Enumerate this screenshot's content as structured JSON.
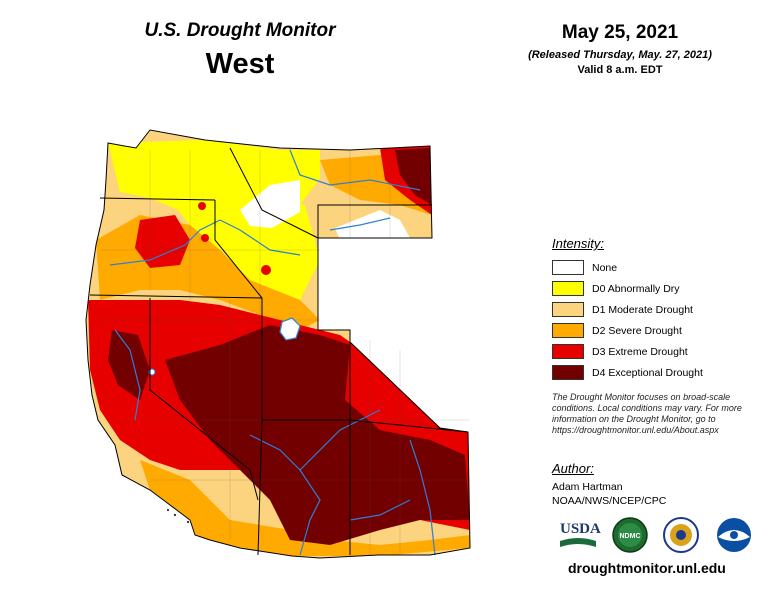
{
  "header": {
    "title": "U.S. Drought Monitor",
    "region": "West",
    "date": "May 25, 2021",
    "released": "(Released Thursday, May. 27, 2021)",
    "valid": "Valid 8 a.m. EDT"
  },
  "legend": {
    "title": "Intensity:",
    "items": [
      {
        "label": "None",
        "color": "#ffffff"
      },
      {
        "label": "D0 Abnormally Dry",
        "color": "#ffff00"
      },
      {
        "label": "D1 Moderate Drought",
        "color": "#fcd37f"
      },
      {
        "label": "D2 Severe Drought",
        "color": "#ffaa00"
      },
      {
        "label": "D3 Extreme Drought",
        "color": "#e60000"
      },
      {
        "label": "D4 Exceptional Drought",
        "color": "#730000"
      }
    ]
  },
  "note": "The Drought Monitor focuses on broad-scale conditions. Local conditions may vary. For more information on the Drought Monitor, go to https://droughtmonitor.unl.edu/About.aspx",
  "author": {
    "title": "Author:",
    "name": "Adam Hartman",
    "org": "NOAA/NWS/NCEP/CPC"
  },
  "logos": {
    "usda": "USDA",
    "ndmc": "NDMC"
  },
  "url": "droughtmonitor.unl.edu",
  "colors": {
    "none": "#ffffff",
    "d0": "#ffff00",
    "d1": "#fcd37f",
    "d2": "#ffaa00",
    "d3": "#e60000",
    "d4": "#730000",
    "water": "#2d7fd8"
  }
}
